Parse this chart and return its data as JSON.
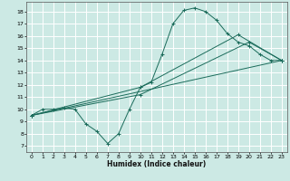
{
  "xlabel": "Humidex (Indice chaleur)",
  "xlim": [
    -0.5,
    23.5
  ],
  "ylim": [
    6.5,
    18.8
  ],
  "yticks": [
    7,
    8,
    9,
    10,
    11,
    12,
    13,
    14,
    15,
    16,
    17,
    18
  ],
  "xticks": [
    0,
    1,
    2,
    3,
    4,
    5,
    6,
    7,
    8,
    9,
    10,
    11,
    12,
    13,
    14,
    15,
    16,
    17,
    18,
    19,
    20,
    21,
    22,
    23
  ],
  "bg_color": "#cce9e4",
  "grid_color": "#ffffff",
  "line_color": "#1a6b5a",
  "curves": [
    {
      "x": [
        0,
        1,
        2,
        3,
        4,
        5,
        6,
        7,
        8,
        9,
        10,
        11,
        12,
        13,
        14,
        15,
        16,
        17,
        18,
        19,
        20,
        21,
        22,
        23
      ],
      "y": [
        9.5,
        10,
        10,
        10.1,
        10,
        8.8,
        8.2,
        7.2,
        8.0,
        10,
        11.8,
        12.2,
        14.5,
        17,
        18.1,
        18.3,
        18.0,
        17.3,
        16.2,
        15.5,
        15.2,
        14.5,
        14,
        14
      ]
    },
    {
      "x": [
        0,
        23
      ],
      "y": [
        9.5,
        14
      ]
    },
    {
      "x": [
        0,
        10,
        20,
        23
      ],
      "y": [
        9.5,
        11.2,
        15.5,
        14
      ]
    },
    {
      "x": [
        0,
        10,
        19,
        23
      ],
      "y": [
        9.5,
        11.8,
        16.1,
        14
      ]
    }
  ]
}
